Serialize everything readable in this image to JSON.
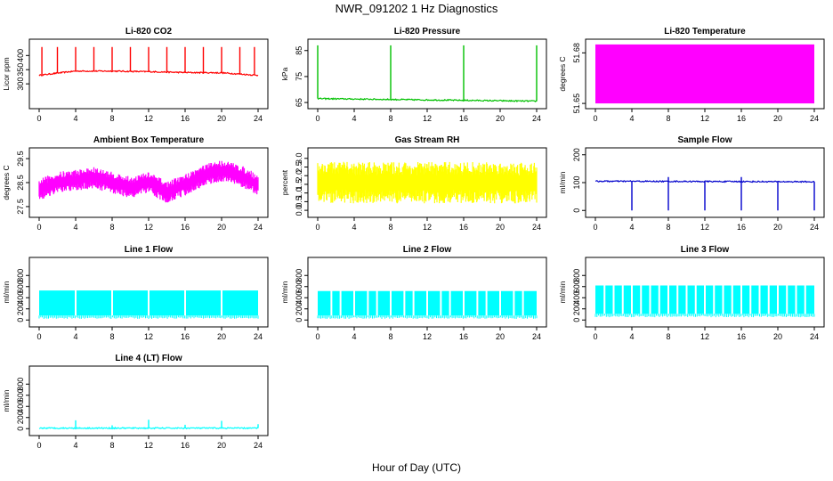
{
  "title": "NWR_091202  1 Hz Diagnostics",
  "xlabel": "Hour of Day (UTC)",
  "colors": {
    "red": "#ff0000",
    "green": "#00c000",
    "magenta": "#ff00ff",
    "yellow": "#ffff00",
    "blue": "#0000cc",
    "cyan": "#00ffff"
  },
  "chart_data": [
    {
      "type": "line",
      "title": "Li-820 CO2",
      "ylabel": "Licor ppm",
      "color": "red",
      "x_ticks": [
        "0",
        "4",
        "8",
        "12",
        "16",
        "20",
        "24"
      ],
      "xlim": [
        0,
        24
      ],
      "ylim": [
        225,
        445
      ],
      "y_ticks": [
        300,
        350,
        400
      ],
      "y_tick_labels": [
        "300",
        "350",
        "400"
      ],
      "baseline": [
        [
          0,
          330
        ],
        [
          2,
          338
        ],
        [
          4,
          345
        ],
        [
          8,
          345
        ],
        [
          12,
          343
        ],
        [
          16,
          340
        ],
        [
          20,
          339
        ],
        [
          24,
          330
        ]
      ],
      "spikes_hr": [
        0.3,
        2.0,
        4.0,
        6.0,
        8.0,
        10.0,
        12.0,
        14.0,
        16.0,
        18.0,
        20.0,
        22.0,
        23.6
      ],
      "spike_top": 430
    },
    {
      "type": "line",
      "title": "Li-820 Pressure",
      "ylabel": "kPa",
      "color": "green",
      "x_ticks": [
        "0",
        "4",
        "8",
        "12",
        "16",
        "20",
        "24"
      ],
      "xlim": [
        0,
        24
      ],
      "ylim": [
        64,
        88
      ],
      "y_ticks": [
        65,
        75,
        85
      ],
      "y_tick_labels": [
        "65",
        "75",
        "85"
      ],
      "baseline": [
        [
          0,
          66.5
        ],
        [
          24,
          65.5
        ]
      ],
      "spikes_hr": [
        0,
        8,
        16,
        24
      ],
      "spike_top": 87
    },
    {
      "type": "area",
      "title": "Li-820 Temperature",
      "ylabel": "degrees C",
      "color": "magenta",
      "x_ticks": [
        "0",
        "4",
        "8",
        "12",
        "16",
        "20",
        "24"
      ],
      "xlim": [
        0,
        24
      ],
      "ylim": [
        51.649,
        51.686
      ],
      "y_ticks": [
        51.65,
        51.68
      ],
      "y_tick_labels": [
        "51.65",
        "51.68"
      ],
      "band": [
        51.65,
        51.685
      ]
    },
    {
      "type": "area",
      "title": "Ambient Box Temperature",
      "ylabel": "degrees C",
      "color": "magenta",
      "x_ticks": [
        "0",
        "4",
        "8",
        "12",
        "16",
        "20",
        "24"
      ],
      "xlim": [
        0,
        24
      ],
      "ylim": [
        27.2,
        29.8
      ],
      "y_ticks": [
        27.5,
        28.5,
        29.5
      ],
      "y_tick_labels": [
        "27.5",
        "28.5",
        "29.5"
      ],
      "center": [
        [
          0,
          28.2
        ],
        [
          2,
          28.5
        ],
        [
          4,
          28.6
        ],
        [
          6,
          28.7
        ],
        [
          8,
          28.5
        ],
        [
          10,
          28.3
        ],
        [
          12,
          28.5
        ],
        [
          14,
          28.1
        ],
        [
          16,
          28.4
        ],
        [
          18,
          28.8
        ],
        [
          20,
          29.0
        ],
        [
          22,
          28.8
        ],
        [
          24,
          28.4
        ]
      ],
      "half_width": 0.45
    },
    {
      "type": "area",
      "title": "Gas Stream RH",
      "ylabel": "percent",
      "color": "yellow",
      "x_ticks": [
        "0",
        "4",
        "8",
        "12",
        "16",
        "20",
        "24"
      ],
      "xlim": [
        0,
        24
      ],
      "ylim": [
        -0.2,
        3.4
      ],
      "y_ticks": [
        0,
        0.5,
        1,
        1.5,
        2,
        2.5,
        3
      ],
      "y_tick_labels": [
        "0.0",
        "0.5",
        "1.0",
        "1.5",
        "2.0",
        "2.5",
        "3.0"
      ],
      "center": [
        [
          0,
          1.6
        ],
        [
          24,
          1.6
        ]
      ],
      "half_width": 1.2
    },
    {
      "type": "line",
      "title": "Sample Flow",
      "ylabel": "ml/min",
      "color": "blue",
      "x_ticks": [
        "0",
        "4",
        "8",
        "12",
        "16",
        "20",
        "24"
      ],
      "xlim": [
        0,
        24
      ],
      "ylim": [
        -12,
        212
      ],
      "y_ticks": [
        0,
        100,
        200
      ],
      "y_tick_labels": [
        "0",
        "100",
        "200"
      ],
      "baseline": [
        [
          0,
          105
        ],
        [
          24,
          103
        ]
      ],
      "dips_hr": [
        4,
        8,
        12,
        16,
        20,
        24
      ],
      "dip_bottom": 0,
      "up_spikes_hr": [
        8,
        16
      ],
      "spike_top": 120
    },
    {
      "type": "area",
      "title": "Line 1 Flow",
      "ylabel": "ml/min",
      "color": "cyan",
      "x_ticks": [
        "0",
        "4",
        "8",
        "12",
        "16",
        "20",
        "24"
      ],
      "xlim": [
        0,
        24
      ],
      "ylim": [
        -60,
        1060
      ],
      "y_ticks": [
        0,
        200,
        400,
        600,
        800
      ],
      "y_tick_labels": [
        "0",
        "200",
        "400",
        "600",
        "800"
      ],
      "band": [
        80,
        530
      ],
      "gaps_hr": [
        4,
        8,
        12,
        16,
        20
      ]
    },
    {
      "type": "area",
      "title": "Line 2 Flow",
      "ylabel": "ml/min",
      "color": "cyan",
      "x_ticks": [
        "0",
        "4",
        "8",
        "12",
        "16",
        "20",
        "24"
      ],
      "xlim": [
        0,
        24
      ],
      "ylim": [
        -60,
        1060
      ],
      "y_ticks": [
        0,
        200,
        400,
        600,
        800
      ],
      "y_tick_labels": [
        "0",
        "200",
        "400",
        "600",
        "800"
      ],
      "band": [
        80,
        520
      ],
      "gaps_hr": [
        1.5,
        2.5,
        4,
        5.5,
        6.5,
        8,
        9.5,
        10.5,
        12,
        13.5,
        14.5,
        16,
        17.5,
        18.5,
        20,
        21.5,
        22.5
      ]
    },
    {
      "type": "area",
      "title": "Line 3 Flow",
      "ylabel": "ml/min",
      "color": "cyan",
      "x_ticks": [
        "0",
        "4",
        "8",
        "12",
        "16",
        "20",
        "24"
      ],
      "xlim": [
        0,
        24
      ],
      "ylim": [
        -60,
        1060
      ],
      "y_ticks": [
        0,
        200,
        400,
        600,
        800
      ],
      "y_tick_labels": [
        "0",
        "200",
        "400",
        "600",
        "800"
      ],
      "band": [
        110,
        620
      ],
      "gaps_hr": [
        1,
        2,
        3,
        4,
        5,
        6,
        7,
        8,
        9,
        10,
        11,
        12,
        13,
        14,
        15,
        16,
        17,
        18,
        19,
        20,
        21,
        22,
        23
      ]
    },
    {
      "type": "line",
      "title": "Line 4 (LT) Flow",
      "ylabel": "ml/min",
      "color": "cyan",
      "x_ticks": [
        "0",
        "4",
        "8",
        "12",
        "16",
        "20",
        "24"
      ],
      "xlim": [
        0,
        24
      ],
      "ylim": [
        -60,
        1060
      ],
      "y_ticks": [
        0,
        200,
        400,
        600,
        800
      ],
      "y_tick_labels": [
        "0",
        "200",
        "400",
        "600",
        "800"
      ],
      "baseline": [
        [
          0,
          10
        ],
        [
          24,
          10
        ]
      ],
      "up_spikes_hr": [
        4,
        8,
        12,
        16,
        20,
        24
      ],
      "spike_tops": [
        150,
        60,
        160,
        70,
        140,
        80
      ]
    }
  ]
}
